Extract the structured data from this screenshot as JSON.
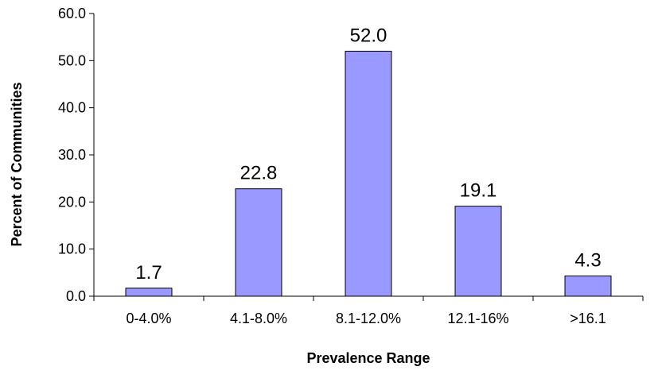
{
  "chart_data": {
    "type": "bar",
    "title": "",
    "xlabel": "Prevalence Range",
    "ylabel": "Percent of Communities",
    "categories": [
      "0-4.0%",
      "4.1-8.0%",
      "8.1-12.0%",
      "12.1-16%",
      ">16.1"
    ],
    "values": [
      1.7,
      22.8,
      52.0,
      19.1,
      4.3
    ],
    "data_labels": [
      "1.7",
      "22.8",
      "52.0",
      "19.1",
      "4.3"
    ],
    "ylim": [
      0,
      60
    ],
    "yticks": [
      "0.0",
      "10.0",
      "20.0",
      "30.0",
      "40.0",
      "50.0",
      "60.0"
    ],
    "grid": false,
    "legend": "none",
    "colors": {
      "bar_fill": "#9999FF",
      "bar_stroke": "#000000",
      "axis": "#000000"
    }
  }
}
